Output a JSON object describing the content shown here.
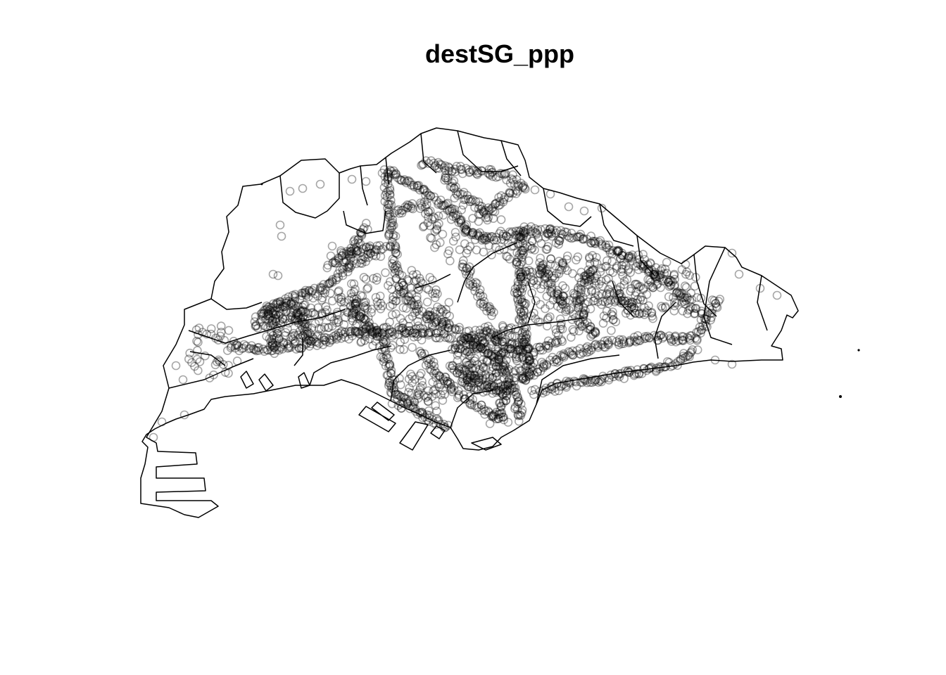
{
  "plot": {
    "title": "destSG_ppp"
  },
  "style": {
    "background": "#ffffff",
    "boundary_color": "#000000",
    "point_color": "#000000",
    "point_opacity": 0.35,
    "point_marker": "open-circle"
  }
}
